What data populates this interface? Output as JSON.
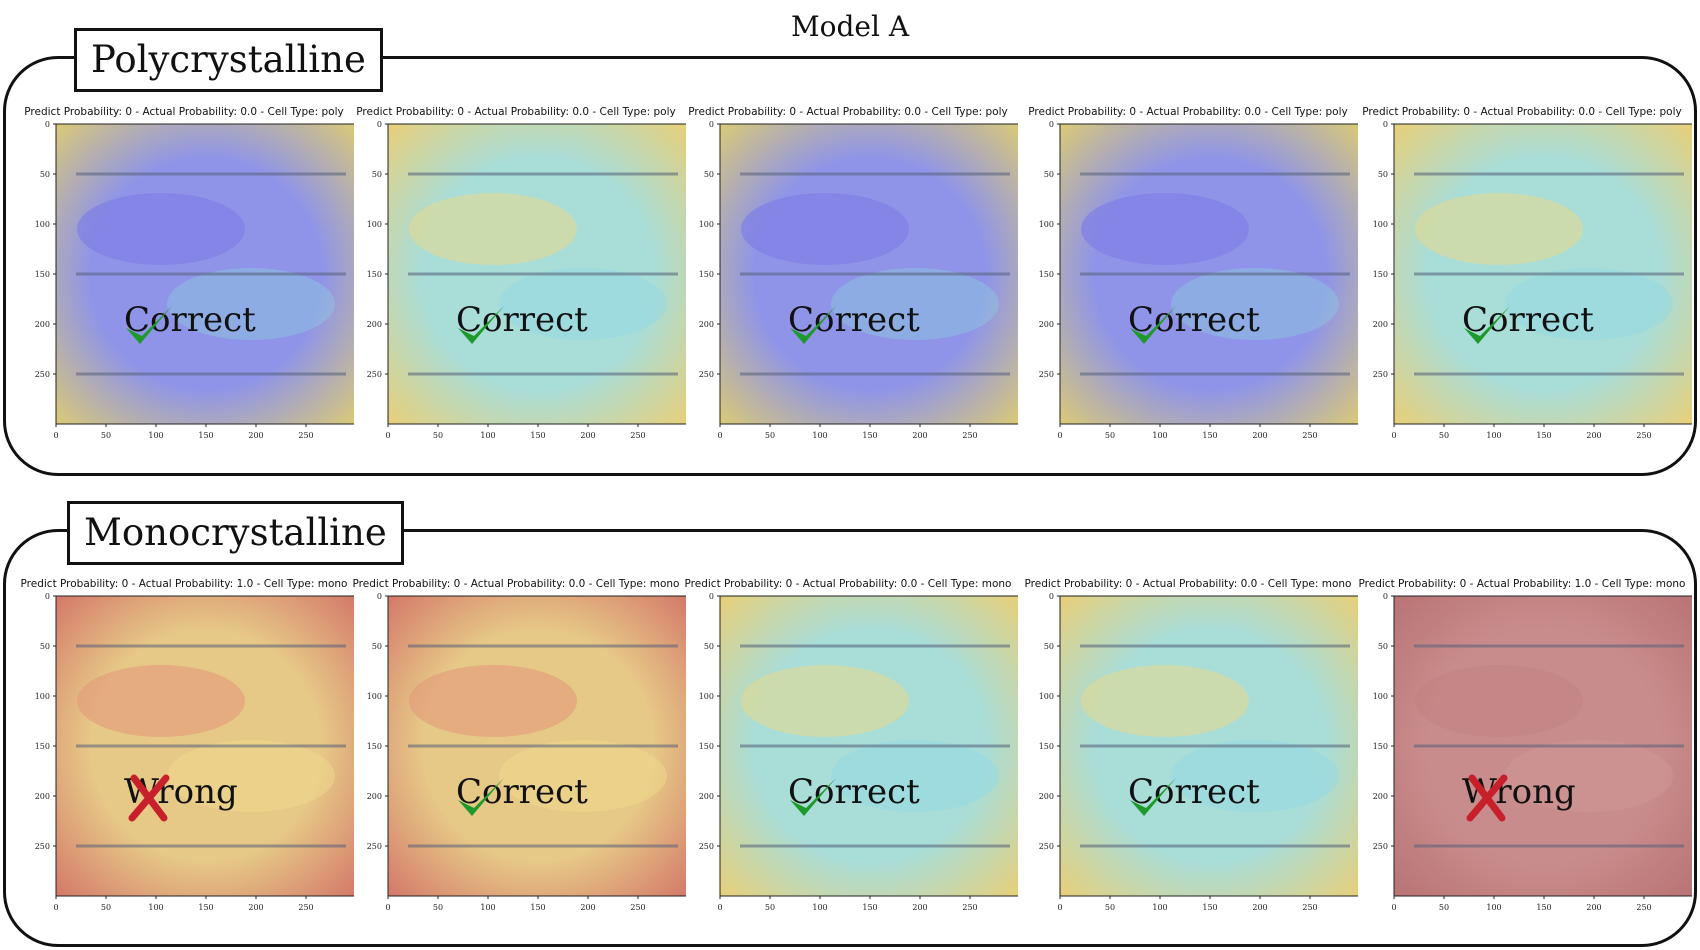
{
  "figure_title": "Model A",
  "groups": [
    {
      "label": "Polycrystalline",
      "panels": [
        {
          "title": "Predict Probability: 0 - Actual Probability: 0.0 - Cell Type: poly",
          "verdict": "Correct",
          "heatmap": "cool"
        },
        {
          "title": "Predict Probability: 0 - Actual Probability: 0.0 - Cell Type: poly",
          "verdict": "Correct",
          "heatmap": "mixed"
        },
        {
          "title": "Predict Probability: 0 - Actual Probability: 0.0 - Cell Type: poly",
          "verdict": "Correct",
          "heatmap": "cool"
        },
        {
          "title": "Predict Probability: 0 - Actual Probability: 0.0 - Cell Type: poly",
          "verdict": "Correct",
          "heatmap": "cool"
        },
        {
          "title": "Predict Probability: 0 - Actual Probability: 0.0 - Cell Type: poly",
          "verdict": "Correct",
          "heatmap": "mixed"
        }
      ]
    },
    {
      "label": "Monocrystalline",
      "panels": [
        {
          "title": "Predict Probability: 0 - Actual Probability: 1.0 - Cell Type: mono",
          "verdict": "Wrong",
          "heatmap": "warm"
        },
        {
          "title": "Predict Probability: 0 - Actual Probability: 0.0 - Cell Type: mono",
          "verdict": "Correct",
          "heatmap": "warm"
        },
        {
          "title": "Predict Probability: 0 - Actual Probability: 0.0 - Cell Type: mono",
          "verdict": "Correct",
          "heatmap": "mixed"
        },
        {
          "title": "Predict Probability: 0 - Actual Probability: 0.0 - Cell Type: mono",
          "verdict": "Correct",
          "heatmap": "mixed"
        },
        {
          "title": "Predict Probability: 0 - Actual Probability: 1.0 - Cell Type: mono",
          "verdict": "Wrong",
          "heatmap": "red"
        }
      ]
    }
  ],
  "axis": {
    "x_ticks": [
      "0",
      "50",
      "100",
      "150",
      "200",
      "250"
    ],
    "y_ticks": [
      "0",
      "50",
      "100",
      "150",
      "200",
      "250"
    ],
    "range": [
      0,
      300
    ]
  },
  "colors": {
    "correct_check": "#1e9a2c",
    "wrong_cross": "#c8202a",
    "frame": "#111111"
  }
}
